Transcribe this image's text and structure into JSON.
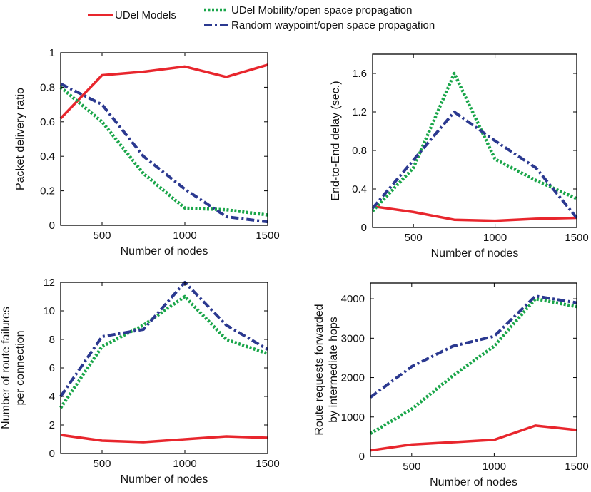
{
  "legend": {
    "entries": [
      {
        "label": "UDel Models",
        "color": "#e8262d",
        "dash": "solid"
      },
      {
        "label": "UDel Mobility/open space propagation",
        "color": "#1aa64a",
        "dash": "dot"
      },
      {
        "label": "Random  waypoint/open space propagation",
        "color": "#2b3990",
        "dash": "dashdot"
      }
    ]
  },
  "chart_data": [
    {
      "type": "line",
      "xlabel": "Number of nodes",
      "ylabel": [
        "Packet delivery ratio"
      ],
      "xlim": [
        250,
        1500
      ],
      "ylim": [
        0,
        1
      ],
      "xticks": [
        500,
        1000,
        1500
      ],
      "yticks": [
        0,
        0.2,
        0.4,
        0.6,
        0.8,
        1
      ],
      "ytick_labels": [
        "0",
        "0.2",
        "0.4",
        "0.6",
        "0.8",
        "1"
      ],
      "x": [
        250,
        500,
        750,
        1000,
        1250,
        1500
      ],
      "series": [
        {
          "name": "UDel Models",
          "values": [
            0.62,
            0.87,
            0.89,
            0.92,
            0.86,
            0.93
          ]
        },
        {
          "name": "UDel Mobility/open space propagation",
          "values": [
            0.8,
            0.6,
            0.3,
            0.1,
            0.09,
            0.06
          ]
        },
        {
          "name": "Random  waypoint/open space propagation",
          "values": [
            0.82,
            0.7,
            0.4,
            0.21,
            0.05,
            0.02
          ]
        }
      ]
    },
    {
      "type": "line",
      "xlabel": "Number of nodes",
      "ylabel": [
        "End-to-End delay (sec.)"
      ],
      "xlim": [
        250,
        1500
      ],
      "ylim": [
        0,
        1.8
      ],
      "xticks": [
        500,
        1000,
        1500
      ],
      "yticks": [
        0,
        0.4,
        0.8,
        1.2,
        1.6
      ],
      "ytick_labels": [
        "0",
        "0.4",
        "0.8",
        "1.2",
        "1.6"
      ],
      "x": [
        250,
        500,
        750,
        1000,
        1250,
        1500
      ],
      "series": [
        {
          "name": "UDel Models",
          "values": [
            0.22,
            0.16,
            0.08,
            0.07,
            0.09,
            0.1
          ]
        },
        {
          "name": "UDel Mobility/open space propagation",
          "values": [
            0.17,
            0.62,
            1.6,
            0.71,
            0.49,
            0.3
          ]
        },
        {
          "name": "Random  waypoint/open space propagation",
          "values": [
            0.2,
            0.7,
            1.2,
            0.9,
            0.62,
            0.1
          ]
        }
      ]
    },
    {
      "type": "line",
      "xlabel": "Number of nodes",
      "ylabel": [
        "Number of route failures",
        "per connection"
      ],
      "xlim": [
        250,
        1500
      ],
      "ylim": [
        0,
        12
      ],
      "xticks": [
        500,
        1000,
        1500
      ],
      "yticks": [
        0,
        2,
        4,
        6,
        8,
        10,
        12
      ],
      "ytick_labels": [
        "0",
        "2",
        "4",
        "6",
        "8",
        "10",
        "12"
      ],
      "x": [
        250,
        500,
        750,
        1000,
        1250,
        1500
      ],
      "series": [
        {
          "name": "UDel Models",
          "values": [
            1.3,
            0.9,
            0.8,
            1.0,
            1.2,
            1.1
          ]
        },
        {
          "name": "UDel Mobility/open space propagation",
          "values": [
            3.2,
            7.5,
            9.0,
            11.0,
            8.0,
            7.0
          ]
        },
        {
          "name": "Random  waypoint/open space propagation",
          "values": [
            4.0,
            8.2,
            8.7,
            12.0,
            9.0,
            7.3
          ]
        }
      ]
    },
    {
      "type": "line",
      "xlabel": "Number of nodes",
      "ylabel": [
        "Route requests forwarded",
        "by intermediate hops"
      ],
      "xlim": [
        250,
        1500
      ],
      "ylim": [
        0,
        4400
      ],
      "xticks": [
        500,
        1000,
        1500
      ],
      "yticks": [
        0,
        1000,
        2000,
        3000,
        4000
      ],
      "ytick_labels": [
        "0",
        "1000",
        "2000",
        "3000",
        "4000"
      ],
      "x": [
        250,
        500,
        750,
        1000,
        1250,
        1500
      ],
      "series": [
        {
          "name": "UDel Models",
          "values": [
            150,
            300,
            360,
            420,
            780,
            670
          ]
        },
        {
          "name": "UDel Mobility/open space propagation",
          "values": [
            580,
            1200,
            2050,
            2800,
            4000,
            3800
          ]
        },
        {
          "name": "Random  waypoint/open space propagation",
          "values": [
            1500,
            2280,
            2800,
            3050,
            4070,
            3900
          ]
        }
      ]
    }
  ]
}
